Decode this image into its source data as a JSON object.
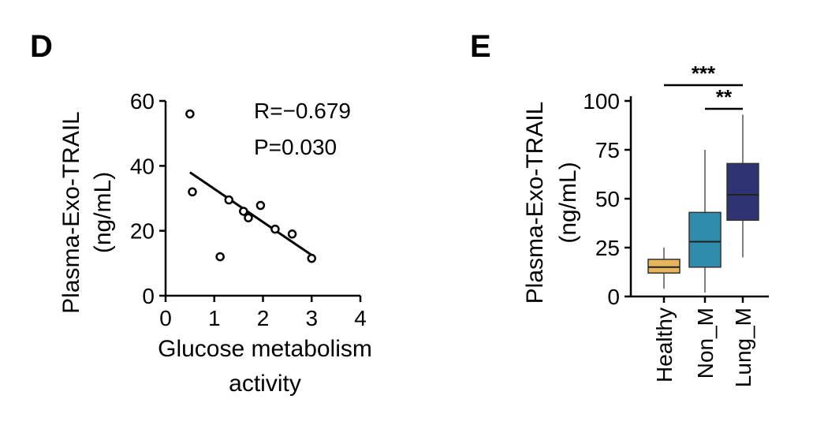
{
  "panels": {
    "d": "D",
    "e": "E"
  },
  "chart_data": [
    {
      "type": "scatter",
      "panel": "D",
      "xlabel_lines": [
        "Glucose metabolism",
        "activity"
      ],
      "ylabel_lines": [
        "Plasma-Exo-TRAIL",
        "(ng/mL)"
      ],
      "xlim": [
        0,
        4
      ],
      "ylim": [
        0,
        60
      ],
      "xticks": [
        0,
        1,
        2,
        3,
        4
      ],
      "yticks": [
        0,
        20,
        40,
        60
      ],
      "points": [
        {
          "x": 0.5,
          "y": 56
        },
        {
          "x": 0.55,
          "y": 32
        },
        {
          "x": 1.12,
          "y": 12
        },
        {
          "x": 1.3,
          "y": 29.5
        },
        {
          "x": 1.6,
          "y": 26
        },
        {
          "x": 1.7,
          "y": 24
        },
        {
          "x": 1.95,
          "y": 27.8
        },
        {
          "x": 2.25,
          "y": 20.5
        },
        {
          "x": 2.6,
          "y": 19
        },
        {
          "x": 3.0,
          "y": 11.5
        }
      ],
      "fit_line": {
        "x1": 0.5,
        "y1": 38,
        "x2": 3.0,
        "y2": 12.5
      },
      "annotations": [
        "R=−0.679",
        "P=0.030"
      ]
    },
    {
      "type": "box",
      "panel": "E",
      "ylabel_lines": [
        "Plasma-Exo-TRAIL",
        "(ng/mL)"
      ],
      "ylim": [
        0,
        100
      ],
      "yticks": [
        0,
        25,
        50,
        75,
        100
      ],
      "categories": [
        "Healthy",
        "Non_M",
        "Lung_M"
      ],
      "boxes": [
        {
          "name": "Healthy",
          "min": 4,
          "q1": 12,
          "median": 15,
          "q3": 19,
          "max": 25,
          "color": "#e8b55c"
        },
        {
          "name": "Non_M",
          "min": 2,
          "q1": 15,
          "median": 28,
          "q3": 43,
          "max": 75,
          "color": "#2f8cad"
        },
        {
          "name": "Lung_M",
          "min": 20,
          "q1": 39,
          "median": 52,
          "q3": 68,
          "max": 93,
          "color": "#2e3473"
        }
      ],
      "significance": [
        {
          "from": "Healthy",
          "to": "Lung_M",
          "label": "***"
        },
        {
          "from": "Non_M",
          "to": "Lung_M",
          "label": "**"
        }
      ]
    }
  ]
}
